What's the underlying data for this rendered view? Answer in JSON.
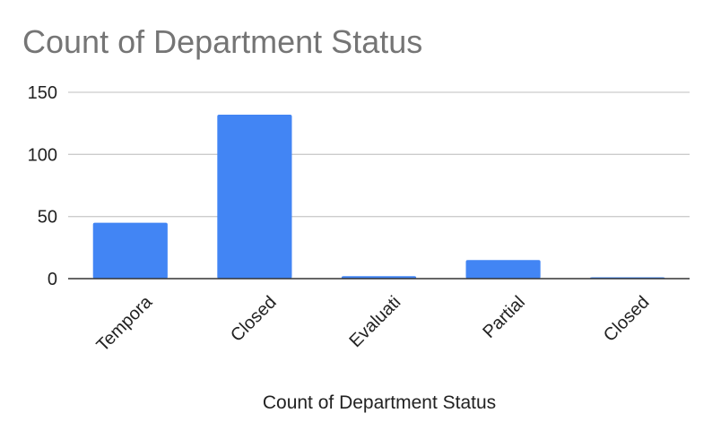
{
  "chart_data": {
    "type": "bar",
    "title": "Count of Department Status",
    "xlabel": "Count of Department Status",
    "ylabel": "",
    "categories": [
      "Tempora",
      "Closed",
      "Evaluati",
      "Partial",
      "Closed"
    ],
    "values": [
      45,
      132,
      2,
      15,
      1
    ],
    "ylim": [
      0,
      150
    ],
    "yticks": [
      0,
      50,
      100,
      150
    ],
    "grid": true,
    "legend": "none",
    "bar_color": "#4285f4"
  }
}
